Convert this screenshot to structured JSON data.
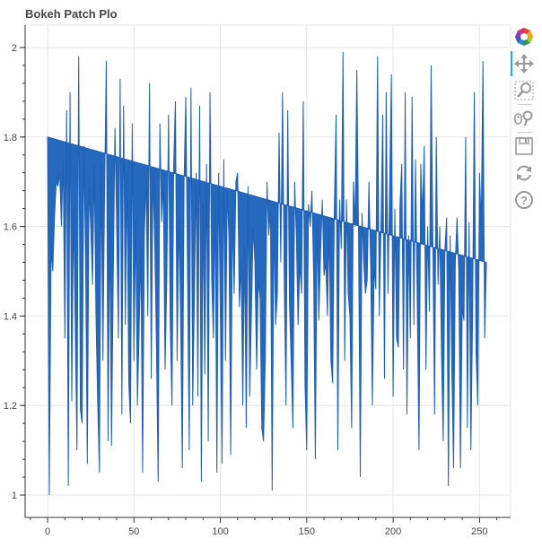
{
  "title": "Bokeh Patch Plo",
  "toolbar": {
    "tools": [
      {
        "name": "bokeh-logo-icon"
      },
      {
        "name": "pan-icon",
        "active": true
      },
      {
        "name": "box-zoom-icon"
      },
      {
        "name": "wheel-zoom-icon"
      },
      {
        "name": "save-icon"
      },
      {
        "name": "reset-icon"
      },
      {
        "name": "help-icon"
      }
    ]
  },
  "chart_data": {
    "type": "area",
    "title": "Bokeh Patch Plo",
    "xlabel": "",
    "ylabel": "",
    "xlim": [
      -13,
      268
    ],
    "ylim": [
      0.95,
      2.05
    ],
    "xticks": [
      "0",
      "50",
      "100",
      "150",
      "200",
      "250"
    ],
    "yticks": [
      "1",
      "1.2",
      "1.4",
      "1.6",
      "1.8",
      "2"
    ],
    "grid": true,
    "fill_color": "#2569be",
    "line_color": "#1f5fb4",
    "x_start": 0,
    "x_step": 1,
    "y": [
      1.8,
      1.0,
      1.55,
      1.5,
      1.62,
      1.7,
      1.69,
      1.72,
      1.6,
      1.75,
      1.35,
      1.86,
      1.02,
      1.9,
      1.21,
      1.64,
      1.38,
      1.1,
      1.98,
      1.19,
      1.16,
      1.78,
      1.53,
      1.07,
      1.69,
      1.6,
      1.47,
      1.74,
      1.4,
      1.21,
      1.05,
      1.74,
      1.3,
      1.68,
      1.97,
      1.12,
      1.62,
      1.11,
      1.48,
      1.82,
      1.6,
      1.35,
      1.93,
      1.18,
      1.87,
      1.38,
      1.72,
      1.25,
      1.16,
      1.83,
      1.3,
      1.62,
      1.2,
      1.37,
      1.55,
      1.05,
      1.58,
      1.71,
      1.4,
      1.92,
      1.26,
      1.72,
      1.57,
      1.34,
      1.03,
      1.83,
      1.61,
      1.7,
      1.28,
      1.48,
      1.85,
      1.38,
      1.2,
      1.74,
      1.88,
      1.3,
      1.62,
      1.4,
      1.06,
      1.7,
      1.89,
      1.5,
      1.1,
      1.91,
      1.2,
      1.45,
      1.72,
      1.22,
      1.87,
      1.03,
      1.65,
      1.27,
      1.74,
      1.12,
      1.9,
      1.48,
      1.35,
      1.66,
      1.05,
      1.72,
      1.4,
      1.07,
      1.75,
      1.3,
      1.68,
      1.57,
      1.09,
      1.63,
      1.45,
      1.7,
      1.72,
      1.42,
      1.52,
      1.2,
      1.56,
      1.15,
      1.69,
      1.22,
      1.41,
      1.6,
      1.52,
      1.28,
      1.48,
      1.44,
      1.15,
      1.12,
      1.3,
      1.7,
      1.58,
      1.64,
      1.01,
      1.62,
      1.38,
      1.45,
      1.81,
      1.52,
      1.9,
      1.48,
      1.2,
      1.86,
      1.43,
      1.3,
      1.15,
      1.7,
      1.58,
      1.38,
      1.52,
      1.45,
      1.88,
      1.25,
      1.1,
      1.65,
      1.6,
      1.68,
      1.49,
      1.08,
      1.62,
      1.39,
      1.54,
      1.66,
      1.49,
      1.52,
      1.4,
      1.6,
      1.3,
      1.25,
      1.64,
      1.85,
      1.1,
      1.66,
      1.55,
      1.99,
      1.3,
      1.66,
      1.45,
      1.4,
      1.15,
      1.7,
      1.6,
      1.95,
      1.58,
      1.04,
      1.63,
      1.52,
      1.45,
      1.48,
      1.7,
      1.52,
      1.2,
      1.51,
      1.46,
      1.98,
      1.4,
      1.6,
      1.85,
      1.26,
      1.9,
      1.45,
      1.69,
      1.94,
      1.22,
      1.64,
      1.35,
      1.33,
      1.65,
      1.74,
      1.28,
      1.9,
      1.18,
      1.58,
      1.35,
      1.89,
      1.38,
      1.75,
      1.42,
      1.1,
      1.74,
      1.62,
      1.78,
      1.28,
      1.6,
      1.41,
      1.96,
      1.57,
      1.18,
      1.8,
      1.47,
      1.6,
      1.32,
      1.12,
      1.55,
      1.62,
      1.02,
      1.58,
      1.28,
      1.06,
      1.52,
      1.62,
      1.5,
      1.06,
      1.42,
      1.39,
      1.8,
      1.15,
      1.61,
      1.1,
      1.4,
      1.9,
      1.32,
      1.2,
      1.72,
      1.6,
      1.97,
      1.35,
      1.52
    ]
  }
}
